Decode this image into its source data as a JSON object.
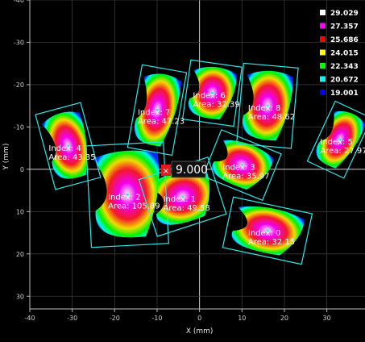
{
  "chart_data": {
    "type": "heatmap",
    "xlabel": "X (mm)",
    "ylabel": "Y (mm)",
    "xlim": [
      -40,
      39
    ],
    "ylim": [
      -40,
      33
    ],
    "x_ticks": [
      "-40",
      "-30",
      "-20",
      "-10",
      "0",
      "10",
      "20",
      "30"
    ],
    "y_ticks": [
      "-40",
      "-30",
      "-20",
      "-10",
      "0",
      "10",
      "20",
      "30"
    ],
    "legend_position": "top-right",
    "legend": [
      {
        "value": "29.029",
        "color": "#ffffff"
      },
      {
        "value": "27.357",
        "color": "#ff00ff"
      },
      {
        "value": "25.686",
        "color": "#ff0000"
      },
      {
        "value": "24.015",
        "color": "#ffff00"
      },
      {
        "value": "22.343",
        "color": "#00ff00"
      },
      {
        "value": "20.672",
        "color": "#00ffff"
      },
      {
        "value": "19.001",
        "color": "#0000ff"
      }
    ],
    "regions": [
      {
        "index": "Index: 0",
        "area": "Area: 32.15",
        "cx": 16,
        "cy": 14.5
      },
      {
        "index": "Index: 1",
        "area": "Area: 49.58",
        "cx": -4,
        "cy": 6.5
      },
      {
        "index": "Index: 2",
        "area": "Area: 105.89",
        "cx": -17,
        "cy": 6
      },
      {
        "index": "Index: 3",
        "area": "Area: 35.97",
        "cx": 10,
        "cy": -1
      },
      {
        "index": "Index: 4",
        "area": "Area: 43.35",
        "cx": -31,
        "cy": -5.5
      },
      {
        "index": "Index: 5",
        "area": "Area: 27.97",
        "cx": 33,
        "cy": -7
      },
      {
        "index": "Index: 6",
        "area": "Area: 32.39",
        "cx": 3,
        "cy": -18
      },
      {
        "index": "Index: 7",
        "area": "Area: 47.23",
        "cx": -10,
        "cy": -14
      },
      {
        "index": "Index: 8",
        "area": "Area: 48.62",
        "cx": 16,
        "cy": -15
      }
    ],
    "cursor_value": "9.000"
  }
}
